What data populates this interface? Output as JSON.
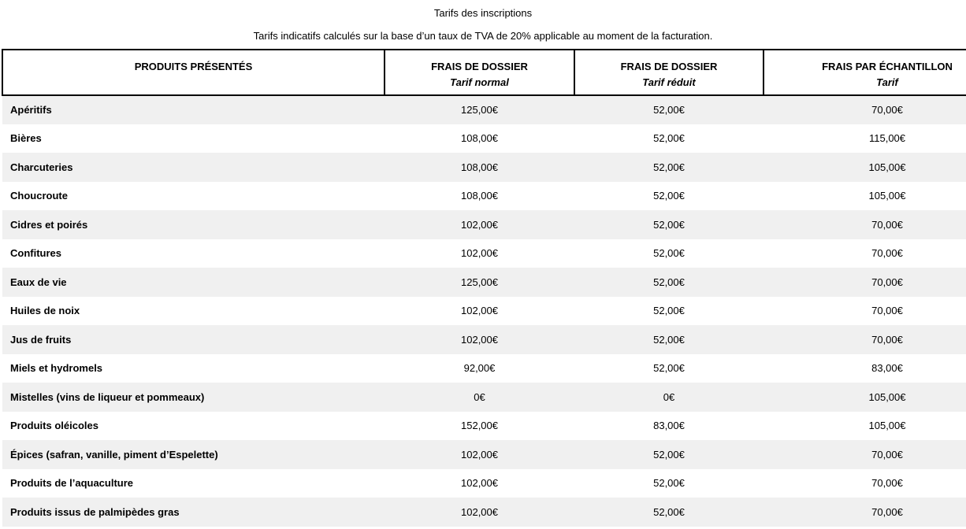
{
  "page": {
    "title": "Tarifs des inscriptions",
    "subtitle": "Tarifs indicatifs calculés sur la base d’un taux de TVA de 20% applicable au moment de la facturation."
  },
  "table": {
    "columns": [
      {
        "label": "PRODUITS PRÉSENTÉS",
        "sublabel": ""
      },
      {
        "label": "FRAIS DE DOSSIER",
        "sublabel": "Tarif normal"
      },
      {
        "label": "FRAIS DE DOSSIER",
        "sublabel": "Tarif réduit"
      },
      {
        "label": "FRAIS PAR ÉCHANTILLON",
        "sublabel": "Tarif"
      }
    ],
    "rows": [
      {
        "product": "Apéritifs",
        "normal": "125,00€",
        "reduit": "52,00€",
        "echantillon": "70,00€"
      },
      {
        "product": "Bières",
        "normal": "108,00€",
        "reduit": "52,00€",
        "echantillon": "115,00€"
      },
      {
        "product": "Charcuteries",
        "normal": "108,00€",
        "reduit": "52,00€",
        "echantillon": "105,00€"
      },
      {
        "product": "Choucroute",
        "normal": "108,00€",
        "reduit": "52,00€",
        "echantillon": "105,00€"
      },
      {
        "product": "Cidres et poirés",
        "normal": "102,00€",
        "reduit": "52,00€",
        "echantillon": "70,00€"
      },
      {
        "product": "Confitures",
        "normal": "102,00€",
        "reduit": "52,00€",
        "echantillon": "70,00€"
      },
      {
        "product": "Eaux de vie",
        "normal": "125,00€",
        "reduit": "52,00€",
        "echantillon": "70,00€"
      },
      {
        "product": "Huiles de noix",
        "normal": "102,00€",
        "reduit": "52,00€",
        "echantillon": "70,00€"
      },
      {
        "product": "Jus de fruits",
        "normal": "102,00€",
        "reduit": "52,00€",
        "echantillon": "70,00€"
      },
      {
        "product": "Miels et hydromels",
        "normal": "92,00€",
        "reduit": "52,00€",
        "echantillon": "83,00€"
      },
      {
        "product": "Mistelles (vins de liqueur et pommeaux)",
        "normal": "0€",
        "reduit": "0€",
        "echantillon": "105,00€"
      },
      {
        "product": "Produits oléicoles",
        "normal": "152,00€",
        "reduit": "83,00€",
        "echantillon": "105,00€"
      },
      {
        "product": "Épices (safran, vanille, piment d’Espelette)",
        "normal": "102,00€",
        "reduit": "52,00€",
        "echantillon": "70,00€"
      },
      {
        "product": "Produits de l’aquaculture",
        "normal": "102,00€",
        "reduit": "52,00€",
        "echantillon": "70,00€"
      },
      {
        "product": "Produits issus de palmipèdes gras",
        "normal": "102,00€",
        "reduit": "52,00€",
        "echantillon": "70,00€"
      }
    ]
  },
  "colors": {
    "row_alt_background": "#f0f0f0",
    "border": "#000000",
    "text": "#000000",
    "background": "#ffffff"
  }
}
